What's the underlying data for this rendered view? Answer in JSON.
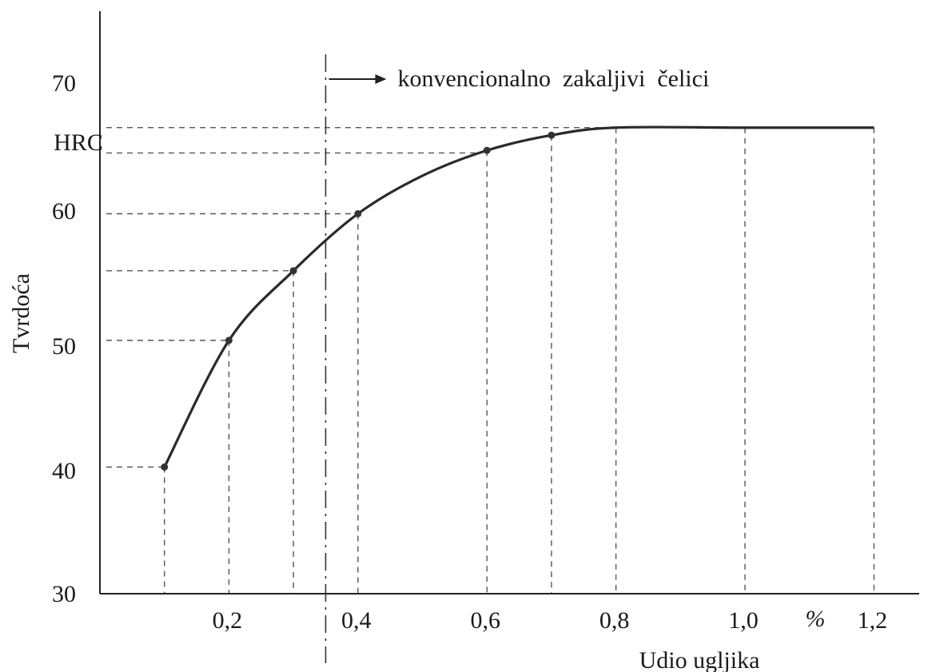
{
  "chart_data": {
    "type": "line",
    "title": "",
    "xlabel": "Udio ugljika",
    "x_unit": "%",
    "ylabel": "Tvrdoća",
    "y_unit": "HRC",
    "xlim": [
      0,
      1.2
    ],
    "ylim": [
      30,
      70
    ],
    "x_ticks": [
      "0,2",
      "0,4",
      "0,6",
      "0,8",
      "1,0",
      "1,2"
    ],
    "y_ticks": [
      "30",
      "40",
      "50",
      "60",
      "70"
    ],
    "grid": false,
    "points": [
      {
        "x": 0.1,
        "y": 40
      },
      {
        "x": 0.2,
        "y": 50
      },
      {
        "x": 0.3,
        "y": 55.5
      },
      {
        "x": 0.4,
        "y": 60
      },
      {
        "x": 0.6,
        "y": 65
      },
      {
        "x": 0.7,
        "y": 66.2
      }
    ],
    "curve": [
      {
        "x": 0.1,
        "y": 40
      },
      {
        "x": 0.2,
        "y": 50
      },
      {
        "x": 0.3,
        "y": 55.5
      },
      {
        "x": 0.4,
        "y": 60
      },
      {
        "x": 0.5,
        "y": 63
      },
      {
        "x": 0.6,
        "y": 65
      },
      {
        "x": 0.7,
        "y": 66.2
      },
      {
        "x": 0.8,
        "y": 66.8
      },
      {
        "x": 1.0,
        "y": 66.8
      },
      {
        "x": 1.2,
        "y": 66.8
      }
    ],
    "dashed_x_lines": [
      0.1,
      0.2,
      0.3,
      0.4,
      0.6,
      0.7,
      0.8,
      1.0,
      1.2
    ],
    "dashed_y_lines": [
      40,
      50,
      55.5,
      60,
      64.8,
      66.8
    ],
    "threshold": {
      "x": 0.35,
      "label": "konvencionalno  zakaljivi  čelici"
    },
    "colors": {
      "line": "#2a2a2a",
      "dash": "#555555",
      "marker": "#333333"
    }
  }
}
